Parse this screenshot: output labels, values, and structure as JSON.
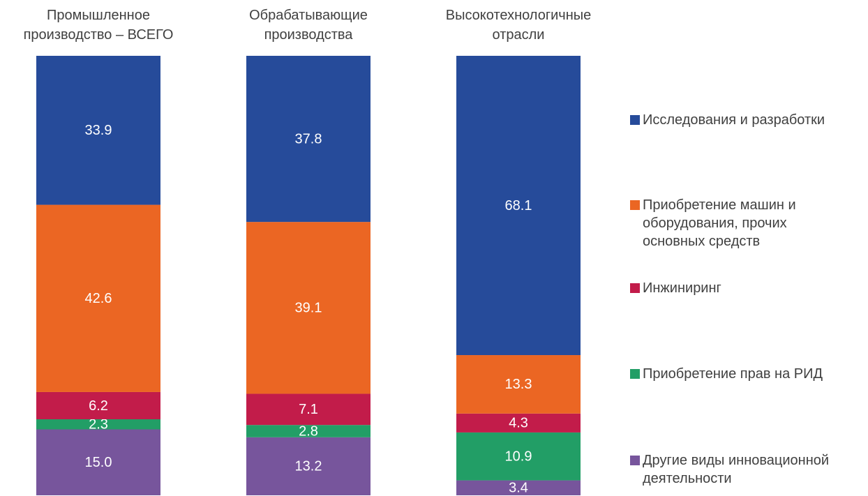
{
  "chart_data": {
    "type": "stacked_bar",
    "categories": [
      "Промышленное\nпроизводство – ВСЕГО",
      "Обрабатывающие\nпроизводства",
      "Высокотехнологичные\nотрасли"
    ],
    "series": [
      {
        "name": "Исследования и разработки",
        "color": "#264b9a",
        "values": [
          33.9,
          37.8,
          68.1
        ]
      },
      {
        "name": "Приобретение машин и\nоборудования, прочих\nосновных средств",
        "color": "#eb6623",
        "values": [
          42.6,
          39.1,
          13.3
        ]
      },
      {
        "name": "Инжиниринг",
        "color": "#c21c4a",
        "values": [
          6.2,
          7.1,
          4.3
        ]
      },
      {
        "name": "Приобретение прав на РИД",
        "color": "#229e66",
        "values": [
          2.3,
          2.8,
          10.9
        ]
      },
      {
        "name": "Другие виды инновационной\nдеятельности",
        "color": "#77559c",
        "values": [
          15,
          13.2,
          3.4
        ],
        "value_labels": [
          "15.0",
          "13.2",
          "3.4"
        ]
      }
    ]
  }
}
